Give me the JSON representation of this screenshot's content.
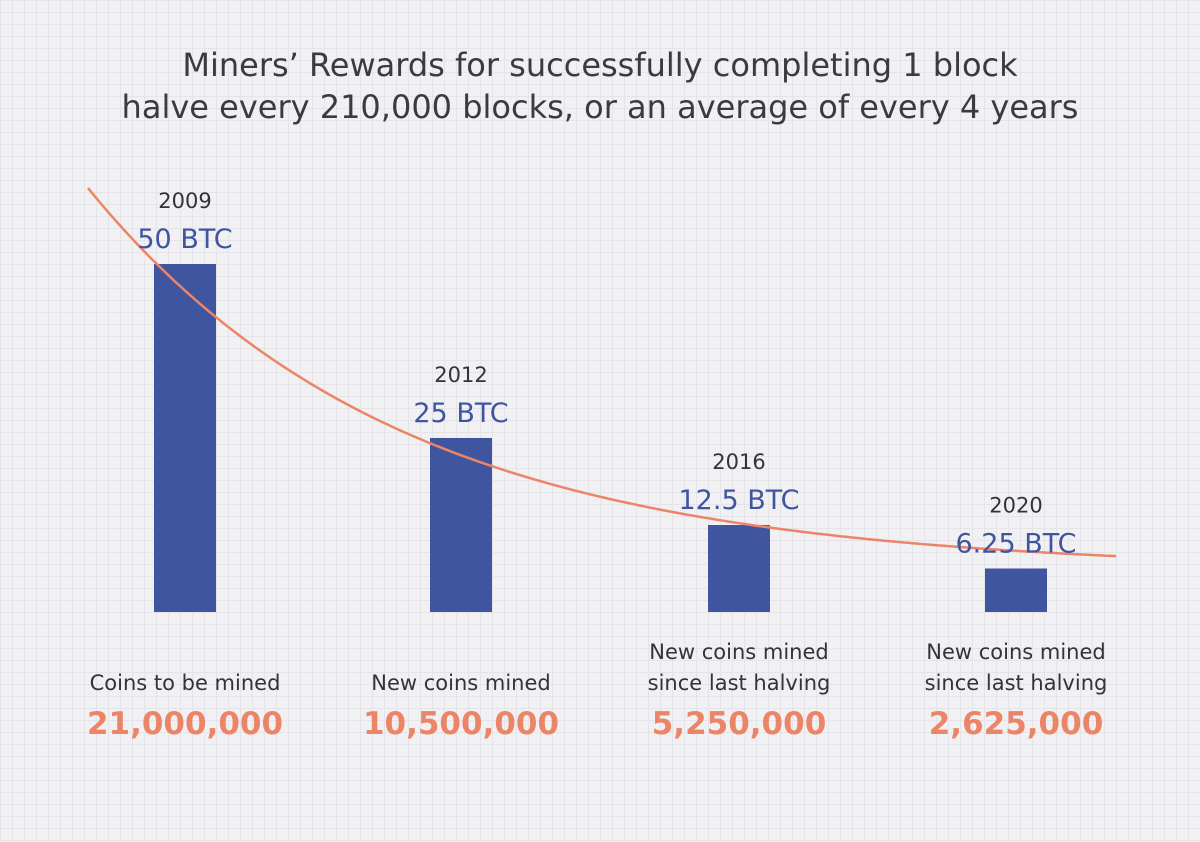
{
  "chart_data": {
    "type": "bar",
    "title_lines": [
      "Miners’ Rewards for successfully completing 1 block",
      "halve every 210,000 blocks, or an average of every 4 years"
    ],
    "unit": "BTC",
    "ylim": [
      0,
      56
    ],
    "trend_line": "exponential halving curve",
    "bars": [
      {
        "year": "2009",
        "value": 50,
        "value_label": "50 BTC",
        "caption": [
          "Coins to be mined"
        ],
        "coins": "21,000,000"
      },
      {
        "year": "2012",
        "value": 25,
        "value_label": "25 BTC",
        "caption": [
          "New coins mined"
        ],
        "coins": "10,500,000"
      },
      {
        "year": "2016",
        "value": 12.5,
        "value_label": "12.5 BTC",
        "caption": [
          "New coins mined",
          "since last halving"
        ],
        "coins": "5,250,000"
      },
      {
        "year": "2020",
        "value": 6.25,
        "value_label": "6.25 BTC",
        "caption": [
          "New coins mined",
          "since last halving"
        ],
        "coins": "2,625,000"
      }
    ],
    "colors": {
      "bar": "#3f55a0",
      "curve": "#ec8568",
      "coins": "#ec8568",
      "title": "#3b3b3f"
    }
  }
}
